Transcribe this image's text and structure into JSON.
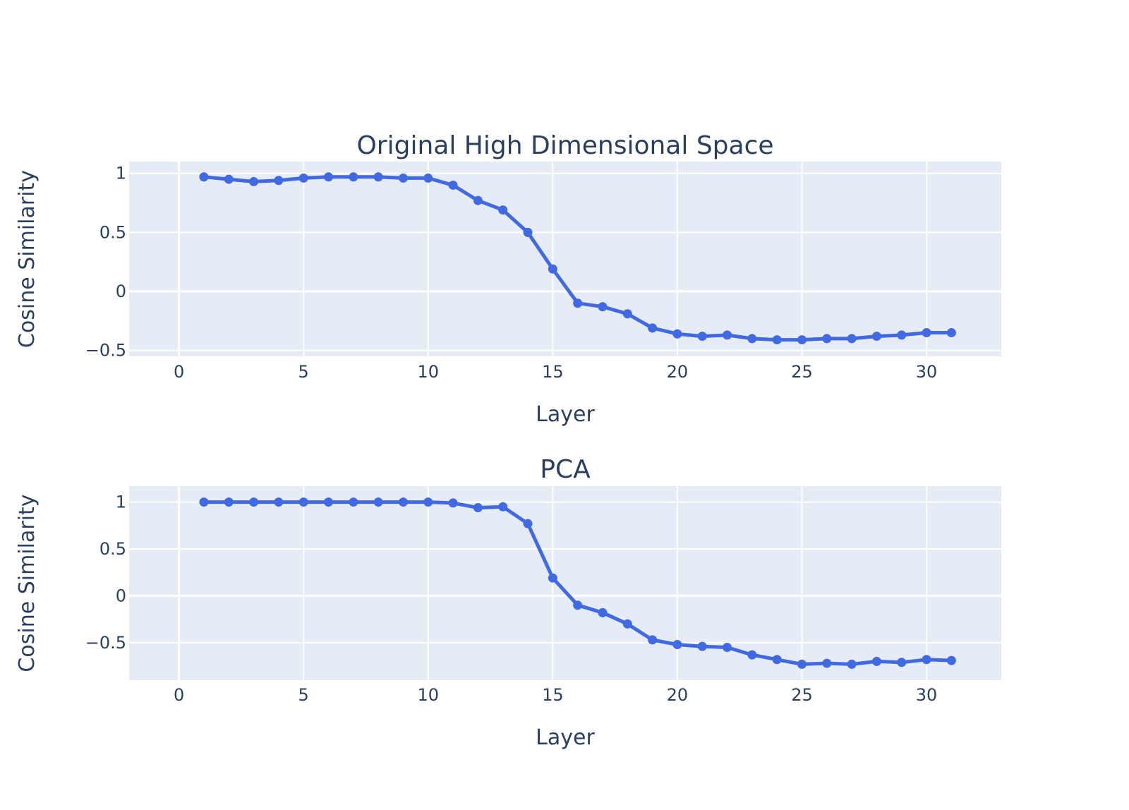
{
  "chart_data": [
    {
      "type": "line",
      "title": "Original High Dimensional Space",
      "xlabel": "Layer",
      "ylabel": "Cosine Similarity",
      "xlim": [
        -2,
        33
      ],
      "ylim": [
        -0.55,
        1.1
      ],
      "xticks": [
        0,
        5,
        10,
        15,
        20,
        25,
        30
      ],
      "xtick_labels": [
        "0",
        "5",
        "10",
        "15",
        "20",
        "25",
        "30"
      ],
      "yticks": [
        -0.5,
        0,
        0.5,
        1
      ],
      "ytick_labels": [
        "−0.5",
        "0",
        "0.5",
        "1"
      ],
      "grid": true,
      "series": [
        {
          "x": [
            1,
            2,
            3,
            4,
            5,
            6,
            7,
            8,
            9,
            10,
            11,
            12,
            13,
            14,
            15,
            16,
            17,
            18,
            19,
            20,
            21,
            22,
            23,
            24,
            25,
            26,
            27,
            28,
            29,
            30,
            31
          ],
          "y": [
            0.97,
            0.95,
            0.93,
            0.94,
            0.96,
            0.97,
            0.97,
            0.97,
            0.96,
            0.96,
            0.9,
            0.77,
            0.69,
            0.5,
            0.19,
            -0.1,
            -0.13,
            -0.19,
            -0.31,
            -0.36,
            -0.38,
            -0.37,
            -0.4,
            -0.41,
            -0.41,
            -0.4,
            -0.4,
            -0.38,
            -0.37,
            -0.35,
            -0.35
          ]
        }
      ]
    },
    {
      "type": "line",
      "title": "PCA",
      "xlabel": "Layer",
      "ylabel": "Cosine Similarity",
      "xlim": [
        -2,
        33
      ],
      "ylim": [
        -0.9,
        1.17
      ],
      "xticks": [
        0,
        5,
        10,
        15,
        20,
        25,
        30
      ],
      "xtick_labels": [
        "0",
        "5",
        "10",
        "15",
        "20",
        "25",
        "30"
      ],
      "yticks": [
        -0.5,
        0,
        0.5,
        1
      ],
      "ytick_labels": [
        "−0.5",
        "0",
        "0.5",
        "1"
      ],
      "grid": true,
      "series": [
        {
          "x": [
            1,
            2,
            3,
            4,
            5,
            6,
            7,
            8,
            9,
            10,
            11,
            12,
            13,
            14,
            15,
            16,
            17,
            18,
            19,
            20,
            21,
            22,
            23,
            24,
            25,
            26,
            27,
            28,
            29,
            30,
            31
          ],
          "y": [
            1.0,
            1.0,
            1.0,
            1.0,
            1.0,
            1.0,
            1.0,
            1.0,
            1.0,
            1.0,
            0.99,
            0.94,
            0.95,
            0.77,
            0.19,
            -0.1,
            -0.18,
            -0.3,
            -0.47,
            -0.52,
            -0.54,
            -0.55,
            -0.63,
            -0.68,
            -0.73,
            -0.72,
            -0.73,
            -0.7,
            -0.71,
            -0.68,
            -0.69
          ]
        }
      ]
    }
  ],
  "colors": {
    "line": "#4169e1",
    "plot_bg": "#e5ecf6",
    "grid": "#ffffff",
    "text": "#2a3f5f"
  }
}
